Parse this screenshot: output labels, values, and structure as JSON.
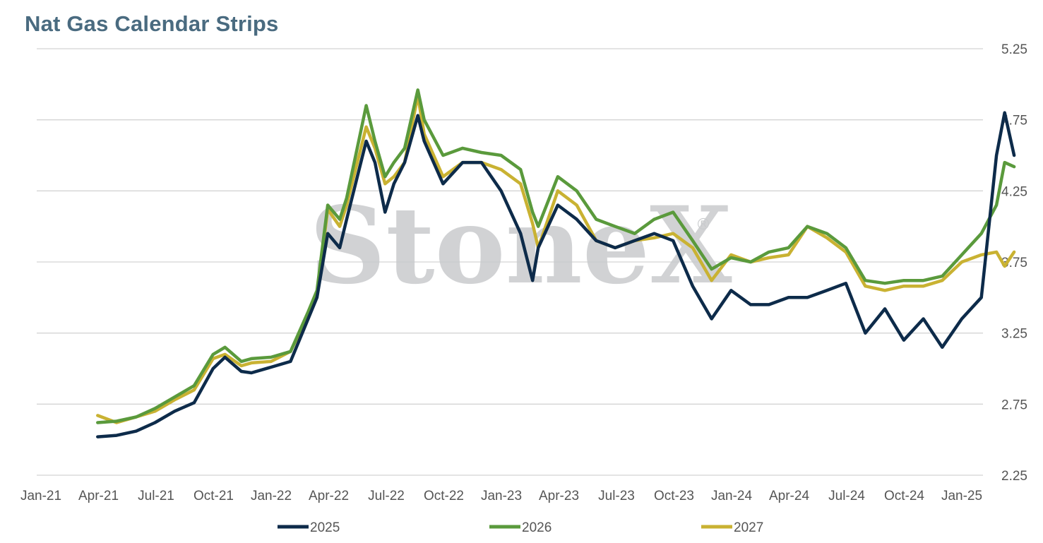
{
  "chart_data": {
    "type": "line",
    "title": "Nat Gas Calendar Strips",
    "watermark": "StoneX",
    "watermark_mark": "®",
    "xlabel": "",
    "ylabel": "",
    "ylim": [
      2.25,
      5.25
    ],
    "yticks": [
      "2.25",
      "2.75",
      "3.25",
      "3.75",
      "4.25",
      "4.75",
      "5.25"
    ],
    "ytick_values": [
      2.25,
      2.75,
      3.25,
      3.75,
      4.25,
      4.75,
      5.25
    ],
    "xticks": [
      "Jan-21",
      "Apr-21",
      "Jul-21",
      "Oct-21",
      "Jan-22",
      "Apr-22",
      "Jul-22",
      "Oct-22",
      "Jan-23",
      "Apr-23",
      "Jul-23",
      "Oct-23",
      "Jan-24",
      "Apr-24",
      "Jul-24",
      "Oct-24",
      "Jan-25"
    ],
    "y_axis_position": "right",
    "grid": "horizontal",
    "legend_position": "bottom",
    "x": [
      "2021-04-01",
      "2021-05-01",
      "2021-06-01",
      "2021-07-01",
      "2021-08-01",
      "2021-09-01",
      "2021-10-01",
      "2021-10-20",
      "2021-11-15",
      "2021-12-01",
      "2022-01-01",
      "2022-02-01",
      "2022-03-01",
      "2022-03-15",
      "2022-04-01",
      "2022-04-20",
      "2022-05-01",
      "2022-06-01",
      "2022-06-15",
      "2022-07-01",
      "2022-07-15",
      "2022-08-01",
      "2022-08-22",
      "2022-09-01",
      "2022-10-01",
      "2022-11-01",
      "2022-12-01",
      "2023-01-01",
      "2023-02-01",
      "2023-02-20",
      "2023-03-01",
      "2023-04-01",
      "2023-05-01",
      "2023-06-01",
      "2023-07-01",
      "2023-08-01",
      "2023-09-01",
      "2023-10-01",
      "2023-11-01",
      "2023-12-01",
      "2024-01-01",
      "2024-02-01",
      "2024-03-01",
      "2024-04-01",
      "2024-05-01",
      "2024-06-01",
      "2024-07-01",
      "2024-08-01",
      "2024-09-01",
      "2024-10-01",
      "2024-11-01",
      "2024-12-01",
      "2025-01-01",
      "2025-02-01",
      "2025-02-25",
      "2025-03-10",
      "2025-03-25"
    ],
    "series": [
      {
        "name": "2025",
        "color": "#0d2b4a",
        "values": [
          2.52,
          2.53,
          2.56,
          2.62,
          2.7,
          2.76,
          3.0,
          3.08,
          2.98,
          2.97,
          3.01,
          3.05,
          3.35,
          3.5,
          3.95,
          3.85,
          4.05,
          4.6,
          4.45,
          4.1,
          4.3,
          4.45,
          4.78,
          4.6,
          4.3,
          4.45,
          4.45,
          4.25,
          3.95,
          3.62,
          3.85,
          4.15,
          4.05,
          3.9,
          3.85,
          3.9,
          3.95,
          3.9,
          3.58,
          3.35,
          3.55,
          3.45,
          3.45,
          3.5,
          3.5,
          3.55,
          3.6,
          3.25,
          3.42,
          3.2,
          3.35,
          3.15,
          3.35,
          3.5,
          4.5,
          4.8,
          4.5
        ]
      },
      {
        "name": "2026",
        "color": "#5a9a3c",
        "values": [
          2.62,
          2.63,
          2.66,
          2.72,
          2.8,
          2.88,
          3.1,
          3.15,
          3.05,
          3.07,
          3.08,
          3.12,
          3.4,
          3.55,
          4.15,
          4.05,
          4.2,
          4.85,
          4.6,
          4.35,
          4.45,
          4.55,
          4.96,
          4.75,
          4.5,
          4.55,
          4.52,
          4.5,
          4.4,
          4.1,
          4.0,
          4.35,
          4.25,
          4.05,
          4.0,
          3.95,
          4.05,
          4.1,
          3.9,
          3.7,
          3.78,
          3.75,
          3.82,
          3.85,
          4.0,
          3.95,
          3.85,
          3.62,
          3.6,
          3.62,
          3.62,
          3.65,
          3.8,
          3.95,
          4.15,
          4.45,
          4.42
        ]
      },
      {
        "name": "2027",
        "color": "#c9b232",
        "values": [
          2.67,
          2.62,
          2.66,
          2.7,
          2.78,
          2.85,
          3.07,
          3.1,
          3.02,
          3.04,
          3.05,
          3.12,
          3.38,
          3.52,
          4.12,
          4.0,
          4.15,
          4.7,
          4.55,
          4.3,
          4.35,
          4.45,
          4.92,
          4.65,
          4.35,
          4.45,
          4.45,
          4.4,
          4.3,
          4.02,
          3.85,
          4.25,
          4.15,
          3.9,
          3.85,
          3.9,
          3.92,
          3.95,
          3.85,
          3.62,
          3.8,
          3.75,
          3.78,
          3.8,
          4.0,
          3.92,
          3.82,
          3.58,
          3.55,
          3.58,
          3.58,
          3.62,
          3.75,
          3.8,
          3.82,
          3.72,
          3.82
        ]
      }
    ]
  }
}
